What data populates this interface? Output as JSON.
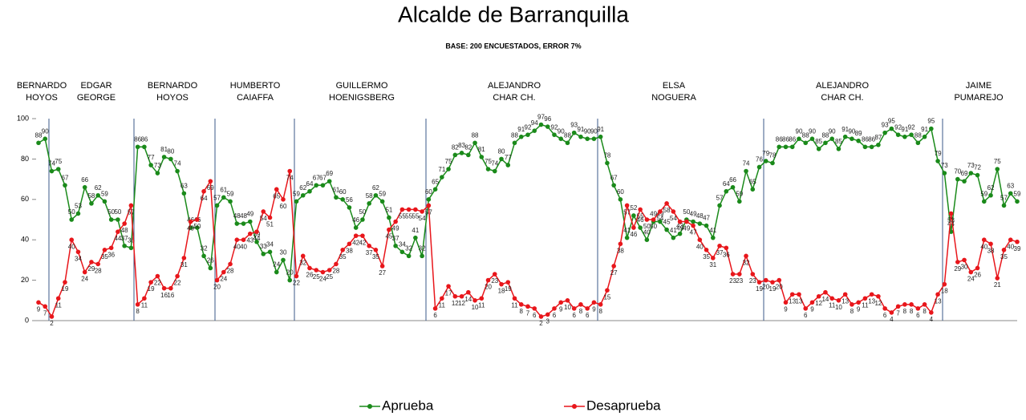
{
  "chart_data": {
    "type": "line",
    "title": "Alcalde de Barranquilla",
    "subtitle": "BASE: 200 ENCUESTADOS, ERROR 7%",
    "groups": [
      [
        "BERNARDO",
        "HOYOS"
      ],
      [
        "EDGAR",
        "GEORGE"
      ],
      [
        "BERNARDO",
        "HOYOS"
      ],
      [
        "HUMBERTO",
        "CAIAFFA"
      ],
      [
        "GUILLERMO",
        "HOENIGSBERG"
      ],
      [
        "ALEJANDRO",
        "CHAR CH."
      ],
      [
        "ELSA",
        "NOGUERA"
      ],
      [
        "ALEJANDRO",
        "CHAR CH."
      ],
      [
        "JAIME",
        "PUMAREJO"
      ]
    ],
    "ylim": [
      0,
      100
    ],
    "yticks": [
      0,
      20,
      40,
      60,
      80,
      100
    ],
    "grid": false,
    "legend": "bottom",
    "series": [
      {
        "name": "Aprueba",
        "color": "#1a8a1a",
        "values": [
          88,
          90,
          74,
          75,
          67,
          50,
          53,
          66,
          58,
          62,
          59,
          50,
          50,
          37,
          36,
          86,
          86,
          77,
          73,
          81,
          80,
          74,
          63,
          46,
          46,
          32,
          26,
          57,
          61,
          59,
          48,
          48,
          49,
          39,
          33,
          34,
          24,
          30,
          20,
          59,
          62,
          64,
          67,
          67,
          69,
          61,
          60,
          56,
          46,
          50,
          58,
          62,
          59,
          51,
          37,
          34,
          32,
          41,
          32,
          60,
          65,
          71,
          75,
          82,
          83,
          82,
          88,
          81,
          75,
          74,
          80,
          77,
          88,
          91,
          92,
          94,
          97,
          96,
          92,
          90,
          88,
          93,
          91,
          90,
          90,
          91,
          78,
          67,
          60,
          41,
          52,
          46,
          40,
          49,
          49,
          45,
          41,
          43,
          50,
          49,
          48,
          47,
          41,
          57,
          64,
          66,
          59,
          74,
          65,
          76,
          79,
          78,
          86,
          86,
          86,
          90,
          88,
          90,
          85,
          88,
          90,
          85,
          91,
          90,
          89,
          86,
          86,
          87,
          93,
          95,
          92,
          91,
          92,
          88,
          91,
          95,
          79,
          73,
          44,
          70,
          69,
          73,
          72,
          59,
          62,
          75,
          57,
          63,
          59
        ]
      },
      {
        "name": "Desaprueba",
        "color": "#e8161b",
        "values": [
          9,
          7,
          2,
          11,
          19,
          40,
          34,
          24,
          29,
          28,
          35,
          36,
          44,
          48,
          57,
          8,
          11,
          19,
          22,
          16,
          16,
          22,
          31,
          49,
          50,
          64,
          69,
          20,
          24,
          28,
          40,
          40,
          43,
          44,
          54,
          51,
          65,
          60,
          74,
          22,
          32,
          26,
          25,
          24,
          25,
          28,
          35,
          38,
          42,
          42,
          37,
          35,
          27,
          45,
          49,
          55,
          55,
          55,
          54,
          57,
          6,
          11,
          17,
          12,
          12,
          14,
          10,
          11,
          20,
          23,
          18,
          19,
          11,
          8,
          7,
          6,
          2,
          3,
          6,
          9,
          10,
          6,
          8,
          6,
          9,
          8,
          15,
          27,
          38,
          57,
          46,
          55,
          50,
          50,
          54,
          58,
          54,
          49,
          49,
          47,
          40,
          35,
          31,
          37,
          36,
          23,
          23,
          32,
          23,
          19,
          20,
          19,
          20,
          9,
          13,
          13,
          6,
          9,
          12,
          14,
          11,
          10,
          13,
          8,
          9,
          11,
          13,
          12,
          6,
          4,
          7,
          8,
          8,
          6,
          8,
          4,
          13,
          18,
          53,
          29,
          30,
          24,
          26,
          40,
          38,
          21,
          35,
          40,
          39
        ]
      }
    ]
  }
}
